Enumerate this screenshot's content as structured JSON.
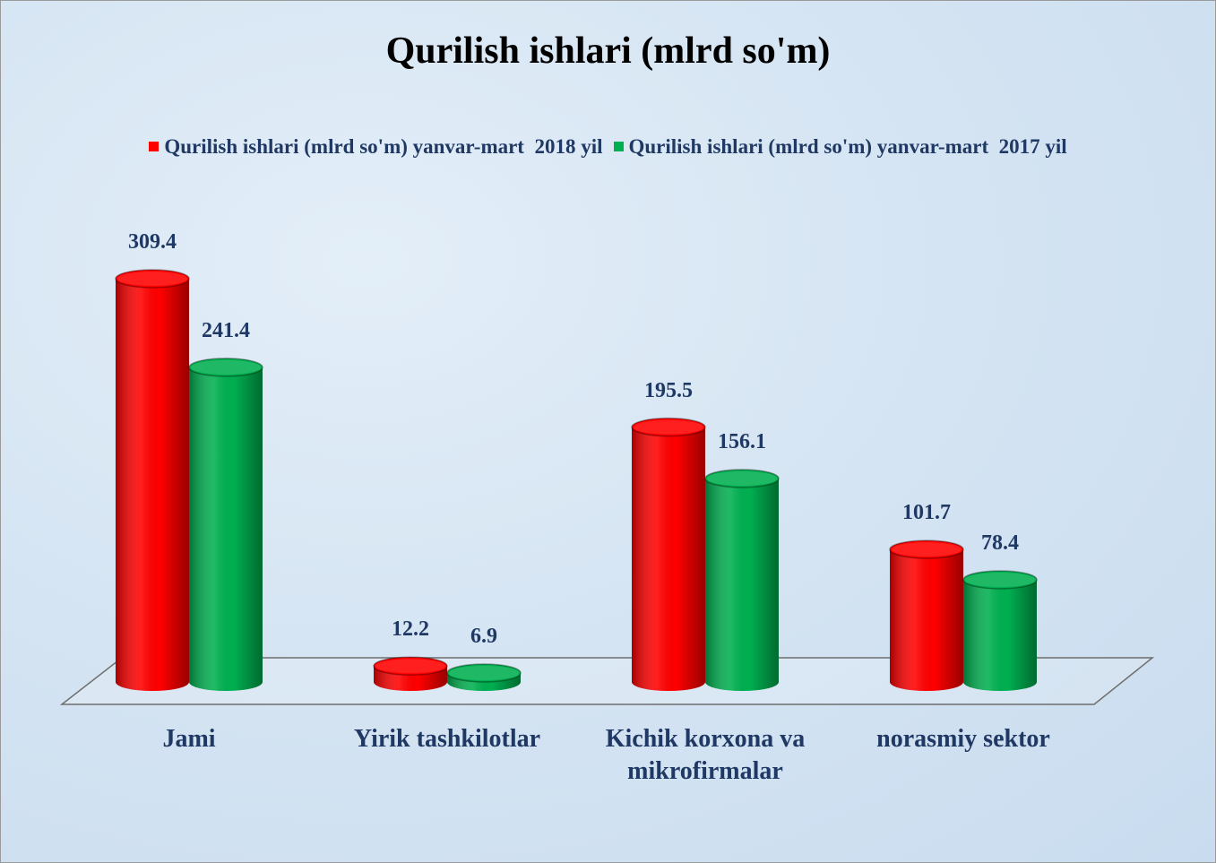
{
  "chart_data": {
    "type": "bar3d",
    "title": "Qurilish ishlari (mlrd so'm)",
    "categories": [
      "Jami",
      "Yirik tashkilotlar",
      "Kichik korxona va mikrofirmalar",
      "norasmiy sektor"
    ],
    "series": [
      {
        "name": "Qurilish ishlari (mlrd so'm) yanvar-mart  2018 yil",
        "color": "#ff0000",
        "values": [
          309.4,
          12.2,
          195.5,
          101.7
        ]
      },
      {
        "name": "Qurilish ishlari (mlrd so'm) yanvar-mart  2017 yil",
        "color": "#00b050",
        "values": [
          241.4,
          6.9,
          156.1,
          78.4
        ]
      }
    ],
    "legend": "top"
  }
}
